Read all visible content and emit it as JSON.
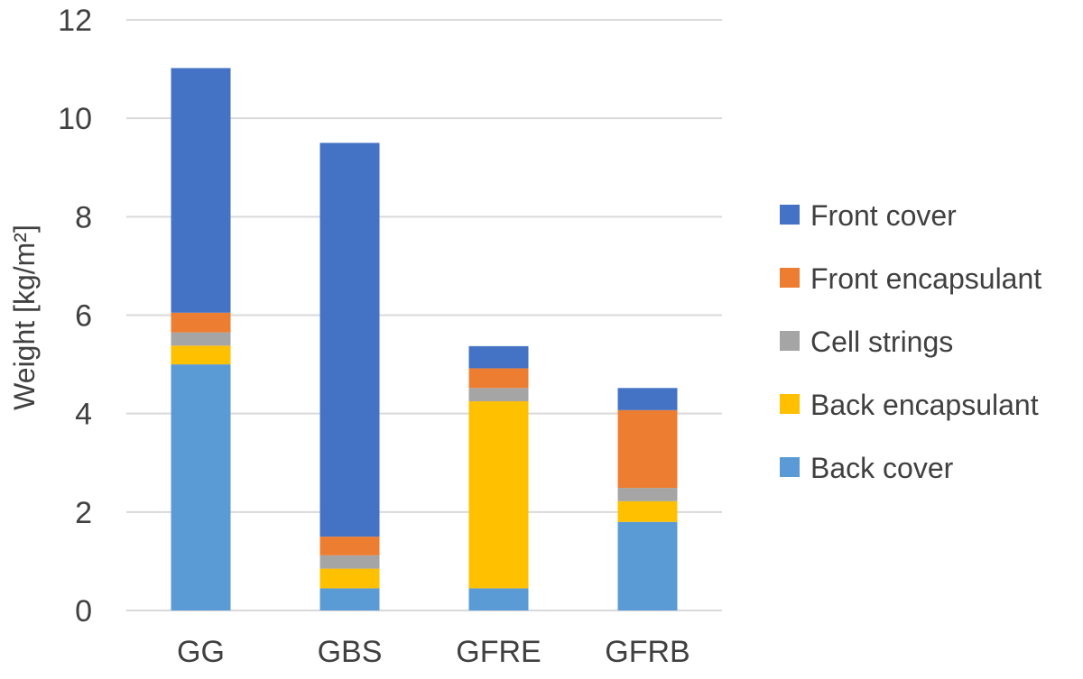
{
  "chart_data": {
    "type": "bar",
    "stacked": true,
    "categories": [
      "GG",
      "GBS",
      "GFRE",
      "GFRB"
    ],
    "series": [
      {
        "name": "Back cover",
        "color": "#5B9BD5",
        "values": [
          5.0,
          0.45,
          0.45,
          1.8
        ]
      },
      {
        "name": "Back encapsulant",
        "color": "#FFC000",
        "values": [
          0.38,
          0.4,
          3.8,
          0.42
        ]
      },
      {
        "name": "Cell strings",
        "color": "#A5A5A5",
        "values": [
          0.27,
          0.27,
          0.27,
          0.27
        ]
      },
      {
        "name": "Front encapsulant",
        "color": "#ED7D31",
        "values": [
          0.4,
          0.38,
          0.4,
          1.58
        ]
      },
      {
        "name": "Front cover",
        "color": "#4472C4",
        "values": [
          4.97,
          8.0,
          0.45,
          0.45
        ]
      }
    ],
    "ylabel": "Weight [kg/m²]",
    "yticks": [
      0,
      2,
      4,
      6,
      8,
      10,
      12
    ],
    "ylim": [
      0,
      12
    ],
    "grid": true,
    "legend_position": "right",
    "legend_order": [
      "Front cover",
      "Front encapsulant",
      "Cell strings",
      "Back encapsulant",
      "Back cover"
    ]
  }
}
